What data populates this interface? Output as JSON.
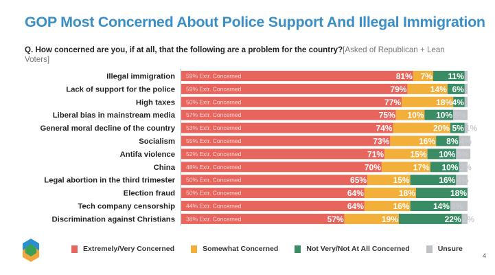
{
  "title": "GOP Most Concerned About Police Support And Illegal Immigration",
  "question": {
    "text": "Q. How concerned are you, if at all, that the following are a problem for the country?",
    "note": "[Asked of Republican + Lean Voters]"
  },
  "page_number": "4",
  "colors": {
    "extremely": "#e8655e",
    "somewhat": "#f2af3a",
    "not": "#3a8c64",
    "unsure": "#bfc3c8",
    "title": "#3a8fc7"
  },
  "legend": [
    "Extremely/Very Concerned",
    "Somewhat Concerned",
    "Not Very/Not At All Concerned",
    "Unsure"
  ],
  "chart_data": {
    "type": "bar",
    "orientation": "horizontal-stacked-100",
    "title": "GOP Most Concerned About Police Support And Illegal Immigration",
    "categories": [
      "Illegal immigration",
      "Lack of support for the police",
      "High taxes",
      "Liberal bias in mainstream media",
      "General moral decline of the country",
      "Socialism",
      "Antifa violence",
      "China",
      "Legal abortion in the third trimester",
      "Election fraud",
      "Tech company censorship",
      "Discrimination against Christians"
    ],
    "extr_labels": [
      "59% Extr. Concerned",
      "59% Extr. Concerned",
      "50% Extr. Concerned",
      "57% Extr. Concerned",
      "53% Extr. Concerned",
      "55% Extr. Concerned",
      "52% Extr. Concerned",
      "48% Extr. Concerned",
      "50% Extr. Concerned",
      "50% Extr. Concerned",
      "44% Extr. Concerned",
      "38% Extr. Concerned"
    ],
    "series": [
      {
        "name": "Extremely/Very Concerned",
        "values": [
          81,
          79,
          77,
          75,
          74,
          73,
          71,
          70,
          65,
          64,
          64,
          57
        ]
      },
      {
        "name": "Somewhat Concerned",
        "values": [
          7,
          14,
          18,
          10,
          20,
          16,
          15,
          17,
          15,
          18,
          16,
          19
        ]
      },
      {
        "name": "Not Very/Not At All Concerned",
        "values": [
          11,
          6,
          4,
          10,
          5,
          8,
          10,
          10,
          16,
          18,
          14,
          22
        ]
      },
      {
        "name": "Unsure",
        "values": [
          null,
          null,
          null,
          5,
          1,
          4,
          5,
          3,
          4,
          null,
          6,
          2
        ]
      }
    ],
    "xlim": [
      0,
      100
    ],
    "legend_position": "bottom"
  }
}
